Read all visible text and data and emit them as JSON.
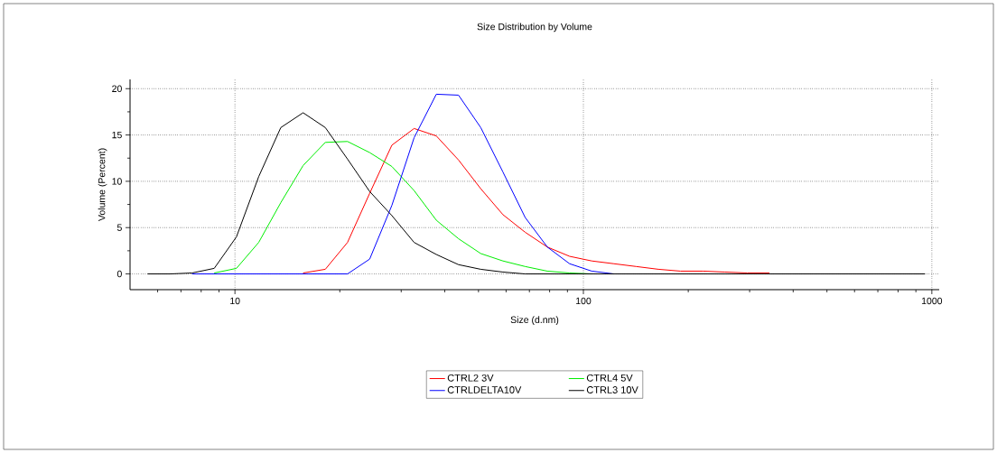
{
  "chart_data": {
    "type": "line",
    "title": "Size Distribution by Volume",
    "xlabel": "Size (d.nm)",
    "ylabel": "Volume (Percent)",
    "log": "x",
    "grid": true,
    "legend": "bottom",
    "marker": "none",
    "line_style": "solid",
    "xlim": [
      5,
      1050
    ],
    "ylim": [
      -1.7,
      21
    ],
    "xticks": [
      {
        "value": 6,
        "label": null
      },
      {
        "value": 7,
        "label": null
      },
      {
        "value": 8,
        "label": null
      },
      {
        "value": 9,
        "label": null
      },
      10,
      {
        "value": 20,
        "label": null
      },
      {
        "value": 30,
        "label": null
      },
      {
        "value": 40,
        "label": null
      },
      {
        "value": 50,
        "label": null
      },
      {
        "value": 60,
        "label": null
      },
      {
        "value": 70,
        "label": null
      },
      {
        "value": 80,
        "label": null
      },
      {
        "value": 90,
        "label": null
      },
      100,
      {
        "value": 200,
        "label": null
      },
      {
        "value": 300,
        "label": null
      },
      {
        "value": 400,
        "label": null
      },
      {
        "value": 500,
        "label": null
      },
      {
        "value": 600,
        "label": null
      },
      {
        "value": 700,
        "label": null
      },
      {
        "value": 800,
        "label": null
      },
      {
        "value": 900,
        "label": null
      },
      1000
    ],
    "yticks": [
      0,
      {
        "value": 2.5,
        "label": null
      },
      5,
      {
        "value": 7.5,
        "label": null
      },
      10,
      {
        "value": 12.5,
        "label": null
      },
      15,
      {
        "value": 17.5,
        "label": null
      },
      20
    ],
    "x": [
      5.615,
      6.503,
      7.531,
      8.721,
      10.1,
      11.7,
      13.54,
      15.69,
      18.17,
      21.04,
      24.36,
      28.21,
      32.67,
      37.84,
      43.82,
      50.75,
      58.77,
      68.06,
      78.82,
      91.28,
      105.7,
      122.4,
      141.8,
      164.2,
      190.1,
      220.2,
      255,
      295.3,
      342,
      396.1,
      458.7,
      531.2,
      615.1,
      712.4,
      825,
      955.4
    ],
    "series": [
      {
        "name": "CTRL2 3V",
        "color": "#ff0000",
        "values": [
          null,
          null,
          null,
          null,
          null,
          null,
          null,
          0.1,
          0.5,
          3.4,
          8.7,
          13.9,
          15.7,
          14.9,
          12.3,
          9.2,
          6.4,
          4.5,
          2.9,
          1.9,
          1.4,
          1.1,
          0.8,
          0.5,
          0.3,
          0.3,
          0.2,
          0.1,
          0.1,
          null,
          null,
          null,
          null,
          null,
          null,
          null
        ]
      },
      {
        "name": "CTRL4 5V",
        "color": "#00ee00",
        "values": [
          null,
          null,
          null,
          0.1,
          0.6,
          3.4,
          7.7,
          11.7,
          14.2,
          14.3,
          13.1,
          11.6,
          9.0,
          5.8,
          3.8,
          2.2,
          1.4,
          0.8,
          0.3,
          0.1,
          0,
          null,
          null,
          null,
          null,
          null,
          null,
          null,
          null,
          null,
          null,
          null,
          null,
          null,
          null,
          null
        ]
      },
      {
        "name": "CTRLDELTA10V",
        "color": "#0000ff",
        "values": [
          null,
          null,
          0,
          0,
          0,
          0,
          0,
          0,
          0,
          0,
          1.6,
          7.4,
          14.7,
          19.4,
          19.3,
          15.8,
          11.0,
          6.1,
          2.9,
          1.1,
          0.3,
          0,
          null,
          null,
          null,
          null,
          null,
          null,
          null,
          null,
          null,
          null,
          null,
          null,
          null,
          null
        ]
      },
      {
        "name": "CTRL3 10V",
        "color": "#000000",
        "values": [
          0,
          0,
          0.1,
          0.6,
          4.0,
          10.5,
          15.8,
          17.4,
          15.8,
          12.4,
          8.9,
          6.3,
          3.4,
          2.1,
          1.0,
          0.5,
          0.2,
          0,
          0,
          0,
          0,
          0,
          0,
          0,
          0,
          0,
          0,
          0,
          0,
          0,
          0,
          0,
          0,
          0,
          0,
          0
        ]
      }
    ]
  }
}
